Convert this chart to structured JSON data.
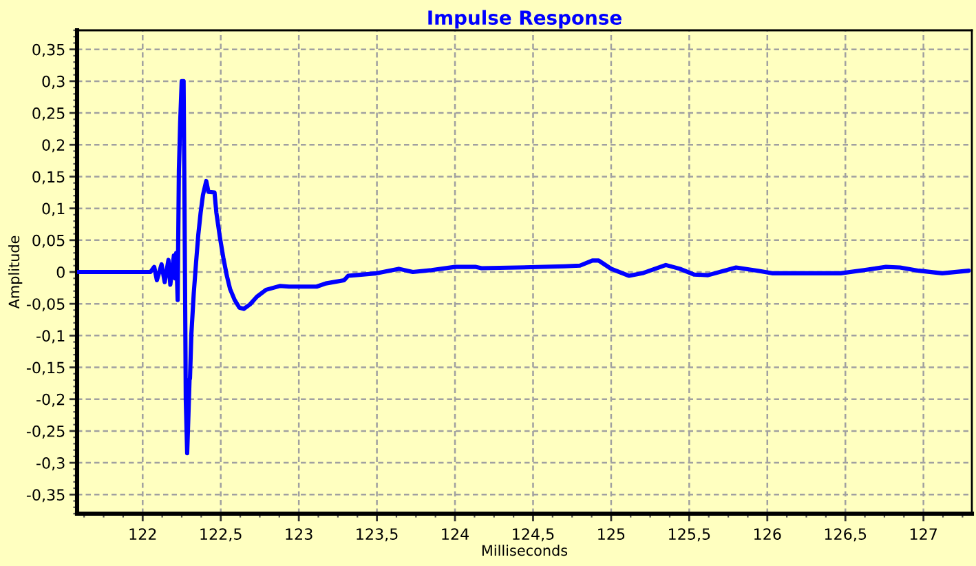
{
  "chart_data": {
    "type": "line",
    "title": "Impulse Response",
    "xlabel": "Milliseconds",
    "ylabel": "Amplitude",
    "series": [
      {
        "color": "#0000ff",
        "x": [
          121.58,
          122.0,
          122.05,
          122.074,
          122.091,
          122.121,
          122.141,
          122.165,
          122.177,
          122.2,
          122.208,
          122.215,
          122.224,
          122.232,
          122.24,
          122.25,
          122.262,
          122.268,
          122.276,
          122.285,
          122.293,
          122.3,
          122.303,
          122.312,
          122.327,
          122.342,
          122.356,
          122.371,
          122.386,
          122.407,
          122.421,
          122.46,
          122.472,
          122.495,
          122.516,
          122.539,
          122.56,
          122.589,
          122.619,
          122.648,
          122.687,
          122.731,
          122.79,
          122.878,
          122.937,
          123.114,
          123.173,
          123.29,
          123.316,
          123.5,
          123.64,
          123.73,
          123.85,
          124.0,
          124.13,
          124.17,
          124.4,
          124.7,
          124.8,
          124.88,
          124.92,
          125.0,
          125.115,
          125.2,
          125.35,
          125.44,
          125.53,
          125.62,
          125.8,
          125.94,
          126.03,
          126.47,
          126.62,
          126.76,
          126.85,
          126.97,
          127.12,
          127.29
        ],
        "values": [
          0,
          0,
          0,
          0.008,
          -0.013,
          0.012,
          -0.016,
          0.019,
          -0.02,
          0.026,
          -0.01,
          0.03,
          -0.044,
          0.16,
          0.234,
          0.3,
          0.3,
          0.107,
          -0.2,
          -0.285,
          -0.225,
          -0.17,
          -0.167,
          -0.097,
          -0.034,
          0.015,
          0.058,
          0.093,
          0.121,
          0.143,
          0.126,
          0.125,
          0.093,
          0.054,
          0.023,
          -0.006,
          -0.027,
          -0.044,
          -0.056,
          -0.058,
          -0.051,
          -0.039,
          -0.028,
          -0.022,
          -0.023,
          -0.023,
          -0.018,
          -0.013,
          -0.006,
          -0.002,
          0.005,
          0,
          0.003,
          0.008,
          0.008,
          0.006,
          0.007,
          0.009,
          0.01,
          0.018,
          0.018,
          0.005,
          -0.006,
          -0.002,
          0.011,
          0.005,
          -0.004,
          -0.005,
          0.007,
          0.002,
          -0.002,
          -0.002,
          0.003,
          0.008,
          0.007,
          0.002,
          -0.002,
          0.002
        ]
      }
    ],
    "xlim": [
      121.58,
      127.31
    ],
    "ylim": [
      -0.38,
      0.38
    ],
    "xticks": [
      122,
      {
        "value": 122.5,
        "label": "122,5"
      },
      123,
      {
        "value": 123.5,
        "label": "123,5"
      },
      124,
      {
        "value": 124.5,
        "label": "124,5"
      },
      125,
      {
        "value": 125.5,
        "label": "125,5"
      },
      126,
      {
        "value": 126.5,
        "label": "126,5"
      },
      127
    ],
    "yticks": [
      {
        "value": -0.35,
        "label": "-0,35"
      },
      {
        "value": -0.3,
        "label": "-0,3"
      },
      {
        "value": -0.25,
        "label": "-0,25"
      },
      {
        "value": -0.2,
        "label": "-0,2"
      },
      {
        "value": -0.15,
        "label": "-0,15"
      },
      {
        "value": -0.1,
        "label": "-0,1"
      },
      {
        "value": -0.05,
        "label": "-0,05"
      },
      0,
      {
        "value": 0.05,
        "label": "0,05"
      },
      {
        "value": 0.1,
        "label": "0,1"
      },
      {
        "value": 0.15,
        "label": "0,15"
      },
      {
        "value": 0.2,
        "label": "0,2"
      },
      {
        "value": 0.25,
        "label": "0,25"
      },
      {
        "value": 0.3,
        "label": "0,3"
      },
      {
        "value": 0.35,
        "label": "0,35"
      }
    ],
    "grid": true
  }
}
